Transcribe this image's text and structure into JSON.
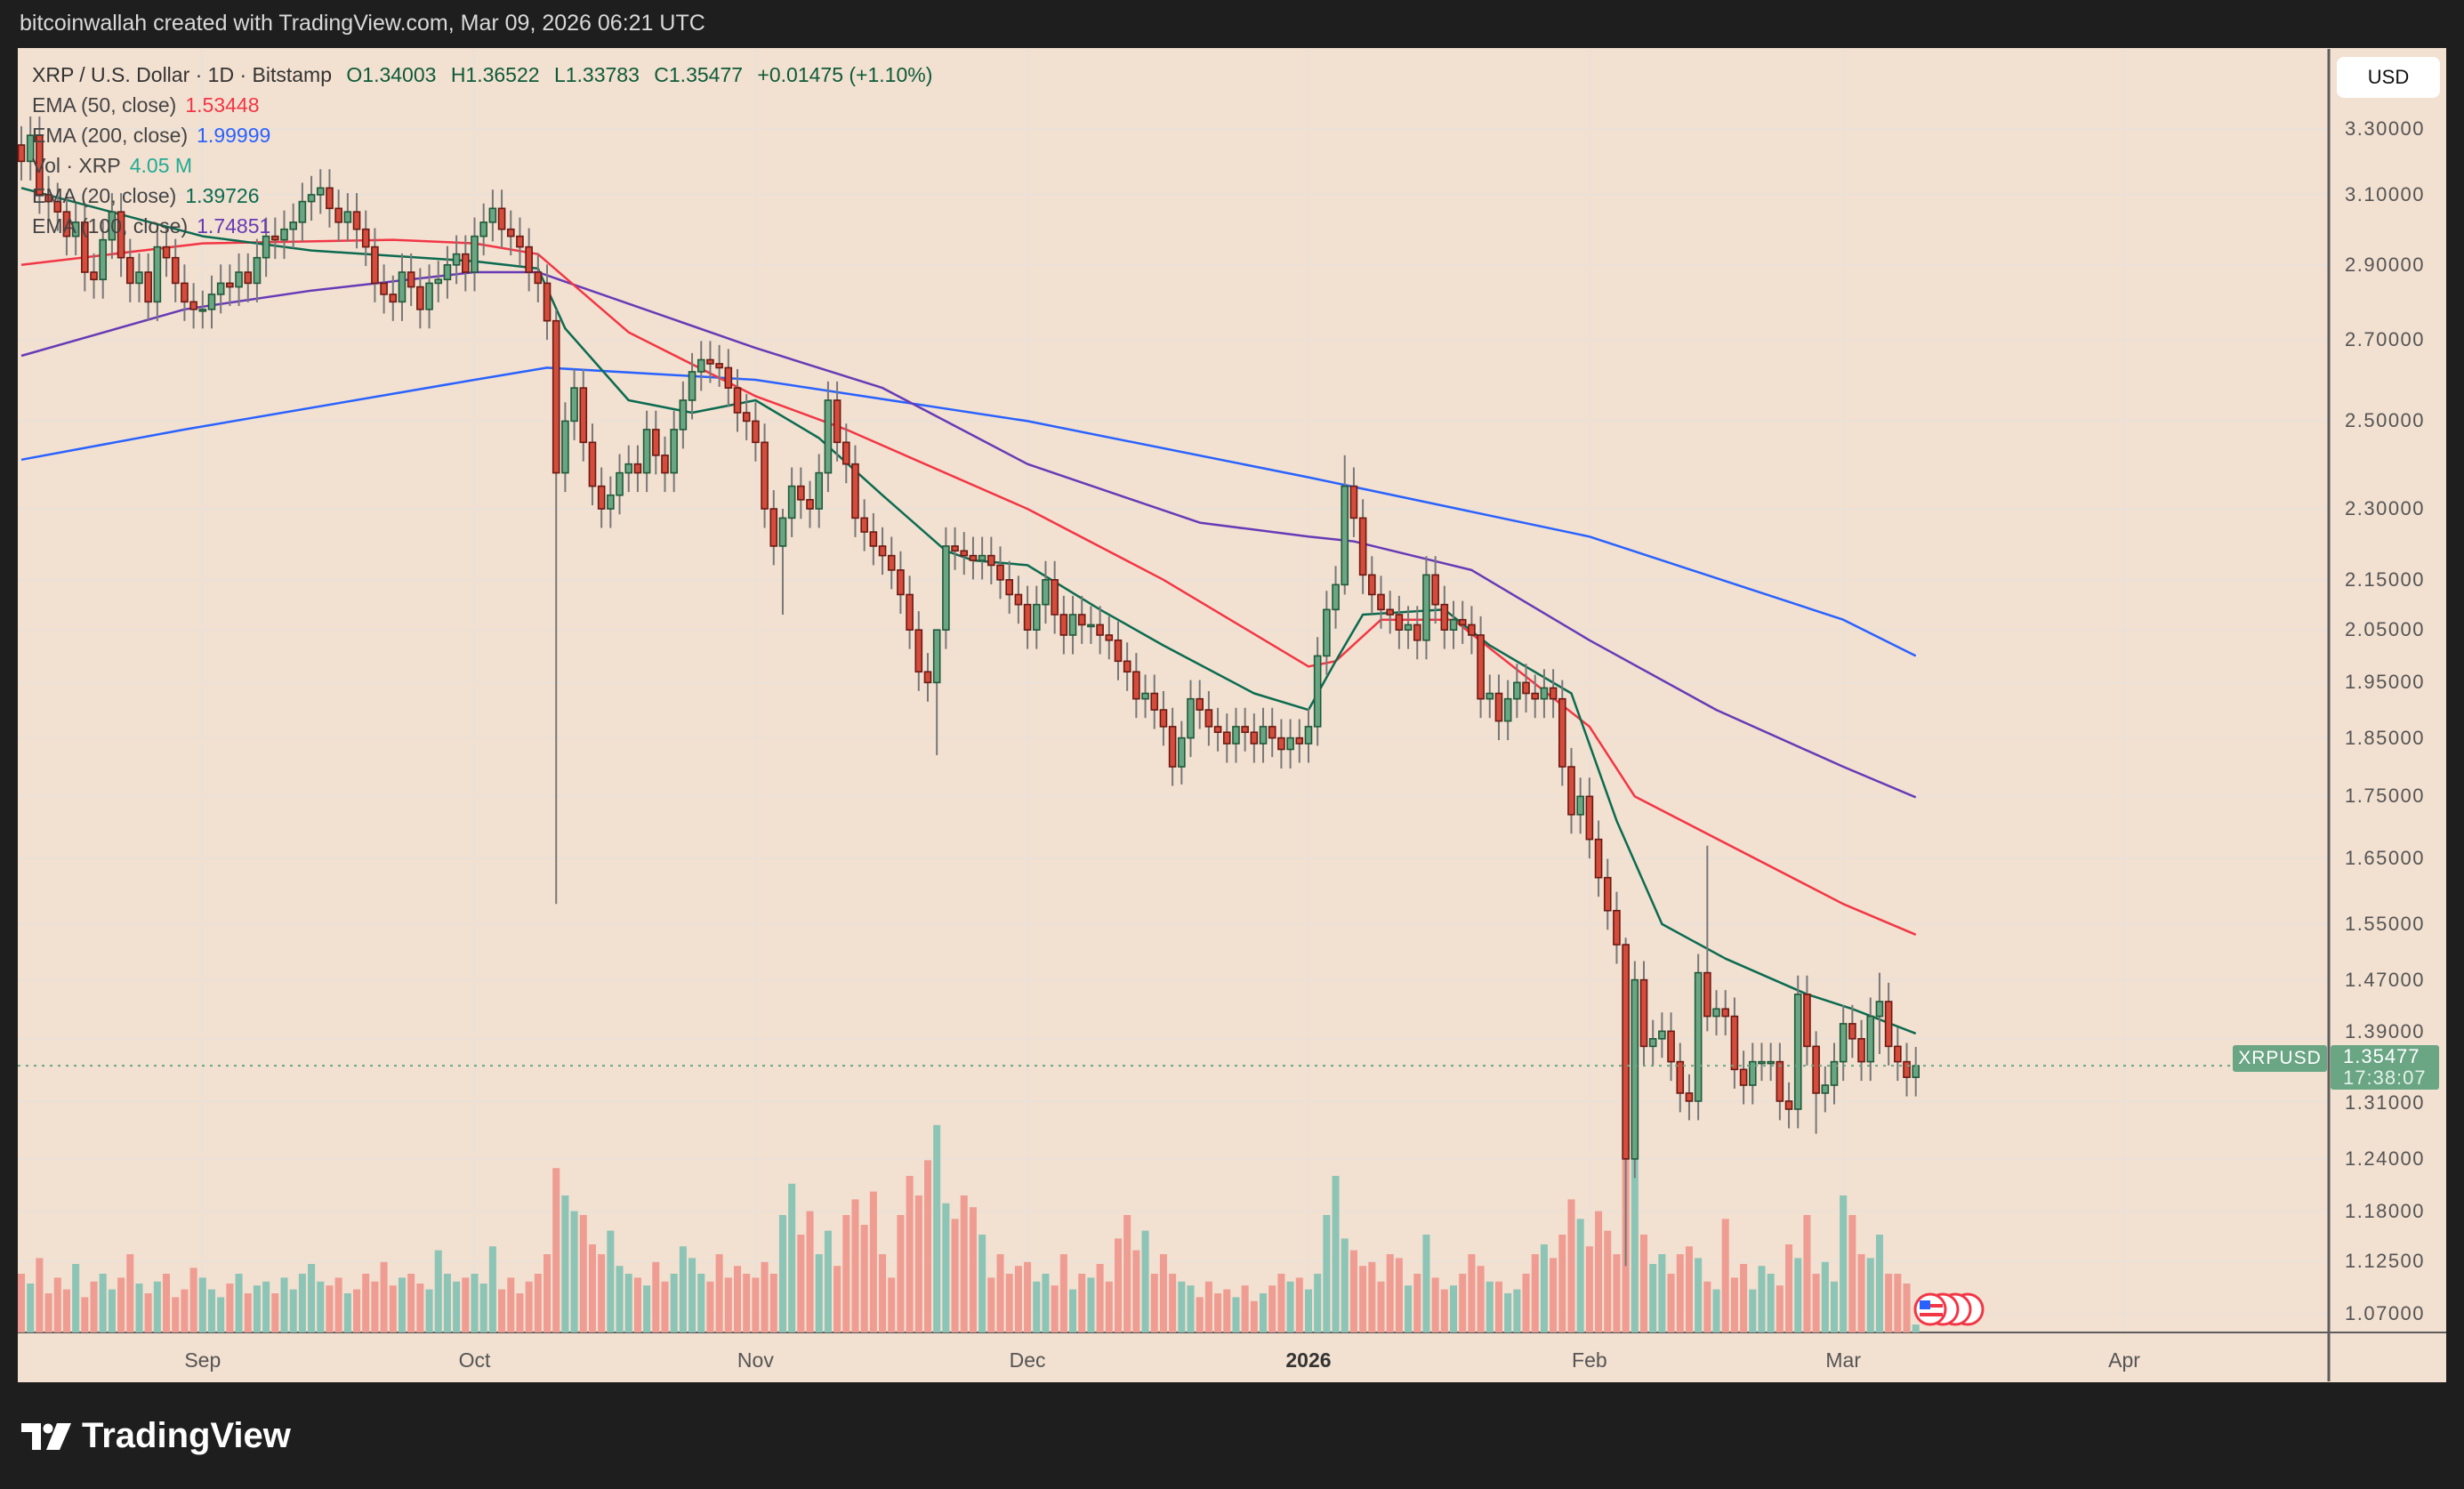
{
  "header": {
    "attribution": "bitcoinwallah created with TradingView.com, Mar 09, 2026 06:21 UTC"
  },
  "legend": {
    "symbol": "XRP / U.S. Dollar · 1D · Bitstamp",
    "open": "O1.34003",
    "high": "H1.36522",
    "low": "L1.33783",
    "close": "C1.35477",
    "change": "+0.01475 (+1.10%)",
    "ema50_label": "EMA (50, close)",
    "ema50_value": "1.53448",
    "ema200_label": "EMA (200, close)",
    "ema200_value": "1.99999",
    "vol_label": "Vol · XRP",
    "vol_value": "4.05 M",
    "ema20_label": "EMA (20, close)",
    "ema20_value": "1.39726",
    "ema100_label": "EMA (100, close)",
    "ema100_value": "1.74851"
  },
  "currency_button": "USD",
  "last_price": {
    "symbol": "XRPUSD",
    "price": "1.35477",
    "countdown": "17:38:07"
  },
  "branding": {
    "logo_text": "TradingView"
  },
  "colors": {
    "up": "#6aa584",
    "down": "#d44c3c",
    "ema50": "#f23645",
    "ema200": "#2962ff",
    "ema20": "#0b6b50",
    "ema100": "#673ab7",
    "vol_up": "#8cc4b6",
    "vol_down": "#ef9c92",
    "background": "#f2e0d0"
  },
  "chart_data": {
    "type": "candlestick",
    "title": "XRP / U.S. Dollar · 1D · Bitstamp",
    "y_scale": "log",
    "ylim": [
      1.05,
      3.35
    ],
    "y_ticks": [
      {
        "value": 3.3,
        "label": "3.30000"
      },
      {
        "value": 3.1,
        "label": "3.10000"
      },
      {
        "value": 2.9,
        "label": "2.90000"
      },
      {
        "value": 2.7,
        "label": "2.70000"
      },
      {
        "value": 2.5,
        "label": "2.50000"
      },
      {
        "value": 2.3,
        "label": "2.30000"
      },
      {
        "value": 2.15,
        "label": "2.15000"
      },
      {
        "value": 2.05,
        "label": "2.05000"
      },
      {
        "value": 1.95,
        "label": "1.95000"
      },
      {
        "value": 1.85,
        "label": "1.85000"
      },
      {
        "value": 1.75,
        "label": "1.75000"
      },
      {
        "value": 1.65,
        "label": "1.65000"
      },
      {
        "value": 1.55,
        "label": "1.55000"
      },
      {
        "value": 1.47,
        "label": "1.47000"
      },
      {
        "value": 1.39,
        "label": "1.39000"
      },
      {
        "value": 1.31,
        "label": "1.31000"
      },
      {
        "value": 1.24,
        "label": "1.24000"
      },
      {
        "value": 1.18,
        "label": "1.18000"
      },
      {
        "value": 1.125,
        "label": "1.12500"
      },
      {
        "value": 1.07,
        "label": "1.07000"
      }
    ],
    "x_ticks": [
      {
        "day": 20,
        "label": "Sep"
      },
      {
        "day": 50,
        "label": "Oct"
      },
      {
        "day": 81,
        "label": "Nov"
      },
      {
        "day": 111,
        "label": "Dec"
      },
      {
        "day": 142,
        "label": "2026",
        "bold": true
      },
      {
        "day": 173,
        "label": "Feb"
      },
      {
        "day": 201,
        "label": "Mar"
      },
      {
        "day": 232,
        "label": "Apr"
      }
    ],
    "first_open": 3.25,
    "closes": [
      3.2,
      3.28,
      3.1,
      3.08,
      3.05,
      2.98,
      3.02,
      2.88,
      2.86,
      2.97,
      3.05,
      2.92,
      2.85,
      2.88,
      2.8,
      2.95,
      2.92,
      2.85,
      2.8,
      2.78,
      2.78,
      2.82,
      2.85,
      2.84,
      2.88,
      2.85,
      2.92,
      2.98,
      2.97,
      3.0,
      3.02,
      3.08,
      3.1,
      3.12,
      3.06,
      3.02,
      3.05,
      3.0,
      2.95,
      2.85,
      2.82,
      2.8,
      2.88,
      2.84,
      2.78,
      2.85,
      2.86,
      2.9,
      2.93,
      2.88,
      2.98,
      3.02,
      3.06,
      3.0,
      2.98,
      2.95,
      2.88,
      2.85,
      2.75,
      2.38,
      2.5,
      2.58,
      2.45,
      2.35,
      2.3,
      2.33,
      2.38,
      2.4,
      2.38,
      2.48,
      2.42,
      2.38,
      2.48,
      2.55,
      2.62,
      2.65,
      2.64,
      2.63,
      2.58,
      2.52,
      2.5,
      2.45,
      2.3,
      2.22,
      2.28,
      2.35,
      2.32,
      2.3,
      2.38,
      2.55,
      2.45,
      2.4,
      2.28,
      2.25,
      2.22,
      2.2,
      2.17,
      2.12,
      2.05,
      1.97,
      1.95,
      2.05,
      2.22,
      2.21,
      2.2,
      2.19,
      2.2,
      2.18,
      2.15,
      2.12,
      2.1,
      2.05,
      2.1,
      2.15,
      2.08,
      2.04,
      2.08,
      2.06,
      2.06,
      2.04,
      2.03,
      1.99,
      1.97,
      1.92,
      1.93,
      1.9,
      1.87,
      1.8,
      1.85,
      1.92,
      1.9,
      1.87,
      1.86,
      1.84,
      1.87,
      1.86,
      1.84,
      1.87,
      1.85,
      1.83,
      1.85,
      1.84,
      1.87,
      2.0,
      2.09,
      2.14,
      2.35,
      2.28,
      2.16,
      2.12,
      2.09,
      2.08,
      2.05,
      2.06,
      2.03,
      2.16,
      2.1,
      2.05,
      2.07,
      2.06,
      2.04,
      1.92,
      1.93,
      1.88,
      1.92,
      1.95,
      1.93,
      1.92,
      1.94,
      1.92,
      1.8,
      1.72,
      1.75,
      1.68,
      1.62,
      1.57,
      1.52,
      1.24,
      1.47,
      1.38,
      1.39,
      1.4,
      1.36,
      1.32,
      1.31,
      1.48,
      1.42,
      1.43,
      1.42,
      1.35,
      1.33,
      1.36,
      1.36,
      1.36,
      1.31,
      1.3,
      1.45,
      1.38,
      1.32,
      1.33,
      1.36,
      1.41,
      1.39,
      1.36,
      1.42,
      1.44,
      1.38,
      1.36,
      1.34,
      1.35477
    ],
    "wick_extremes": [
      {
        "day": 59,
        "high": 2.78,
        "low": 1.58
      },
      {
        "day": 177,
        "high": 1.53,
        "low": 1.12
      },
      {
        "day": 146,
        "high": 2.42,
        "low": 2.12
      },
      {
        "day": 186,
        "high": 1.67,
        "low": 1.4
      },
      {
        "day": 101,
        "high": 2.0,
        "low": 1.82
      },
      {
        "day": 128,
        "high": 1.88,
        "low": 1.77
      },
      {
        "day": 84,
        "high": 2.3,
        "low": 2.08
      },
      {
        "day": 198,
        "high": 1.4,
        "low": 1.27
      },
      {
        "day": 205,
        "high": 1.48,
        "low": 1.37
      }
    ],
    "volume_unit": "M",
    "volumes": [
      30,
      25,
      38,
      20,
      28,
      22,
      35,
      18,
      26,
      30,
      22,
      28,
      40,
      25,
      20,
      26,
      30,
      18,
      22,
      33,
      28,
      22,
      18,
      25,
      30,
      20,
      24,
      26,
      20,
      28,
      22,
      30,
      35,
      26,
      24,
      28,
      20,
      22,
      30,
      26,
      36,
      24,
      28,
      30,
      25,
      22,
      42,
      30,
      26,
      28,
      30,
      25,
      44,
      22,
      28,
      20,
      26,
      30,
      40,
      84,
      70,
      62,
      60,
      45,
      40,
      52,
      34,
      30,
      28,
      24,
      36,
      26,
      30,
      44,
      38,
      30,
      26,
      40,
      28,
      34,
      30,
      28,
      36,
      30,
      60,
      76,
      50,
      62,
      40,
      52,
      34,
      60,
      68,
      55,
      72,
      40,
      28,
      60,
      80,
      70,
      88,
      106,
      66,
      58,
      70,
      64,
      50,
      28,
      40,
      30,
      34,
      36,
      26,
      30,
      24,
      40,
      22,
      30,
      28,
      35,
      26,
      48,
      60,
      42,
      52,
      30,
      40,
      30,
      26,
      24,
      18,
      26,
      20,
      22,
      18,
      24,
      16,
      20,
      24,
      30,
      26,
      28,
      22,
      30,
      60,
      80,
      48,
      42,
      34,
      36,
      26,
      40,
      38,
      24,
      30,
      50,
      28,
      22,
      24,
      30,
      40,
      34,
      26,
      26,
      20,
      22,
      30,
      40,
      45,
      38,
      50,
      68,
      58,
      44,
      62,
      52,
      40,
      98,
      100,
      50,
      35,
      40,
      30,
      40,
      44,
      38,
      26,
      22,
      58,
      28,
      35,
      22,
      34,
      30,
      24,
      45,
      38,
      60,
      30,
      36,
      26,
      70,
      60,
      40,
      38,
      50,
      30,
      30,
      25,
      4.05
    ],
    "series": [
      {
        "name": "EMA (200, close)",
        "color_key": "ema200",
        "points": [
          [
            0,
            2.41
          ],
          [
            18,
            2.48
          ],
          [
            50,
            2.6
          ],
          [
            58,
            2.63
          ],
          [
            81,
            2.6
          ],
          [
            111,
            2.5
          ],
          [
            142,
            2.37
          ],
          [
            173,
            2.24
          ],
          [
            201,
            2.07
          ],
          [
            209,
            2.0
          ]
        ]
      },
      {
        "name": "EMA (100, close)",
        "color_key": "ema100",
        "points": [
          [
            0,
            2.66
          ],
          [
            18,
            2.78
          ],
          [
            32,
            2.83
          ],
          [
            50,
            2.88
          ],
          [
            57,
            2.88
          ],
          [
            81,
            2.68
          ],
          [
            95,
            2.58
          ],
          [
            111,
            2.4
          ],
          [
            130,
            2.27
          ],
          [
            142,
            2.24
          ],
          [
            147,
            2.23
          ],
          [
            160,
            2.17
          ],
          [
            173,
            2.03
          ],
          [
            187,
            1.9
          ],
          [
            201,
            1.8
          ],
          [
            209,
            1.7485
          ]
        ]
      },
      {
        "name": "EMA (50, close)",
        "color_key": "ema50",
        "points": [
          [
            0,
            2.9
          ],
          [
            20,
            2.96
          ],
          [
            41,
            2.97
          ],
          [
            50,
            2.96
          ],
          [
            57,
            2.93
          ],
          [
            67,
            2.72
          ],
          [
            81,
            2.56
          ],
          [
            91,
            2.48
          ],
          [
            111,
            2.3
          ],
          [
            126,
            2.15
          ],
          [
            142,
            1.98
          ],
          [
            145,
            1.99
          ],
          [
            150,
            2.07
          ],
          [
            158,
            2.07
          ],
          [
            173,
            1.87
          ],
          [
            178,
            1.75
          ],
          [
            201,
            1.58
          ],
          [
            209,
            1.5345
          ]
        ]
      },
      {
        "name": "EMA (20, close)",
        "color_key": "ema20",
        "points": [
          [
            0,
            3.12
          ],
          [
            20,
            2.98
          ],
          [
            32,
            2.94
          ],
          [
            50,
            2.91
          ],
          [
            57,
            2.89
          ],
          [
            60,
            2.73
          ],
          [
            67,
            2.55
          ],
          [
            74,
            2.52
          ],
          [
            81,
            2.55
          ],
          [
            88,
            2.46
          ],
          [
            95,
            2.33
          ],
          [
            102,
            2.21
          ],
          [
            105,
            2.19
          ],
          [
            111,
            2.18
          ],
          [
            119,
            2.09
          ],
          [
            126,
            2.02
          ],
          [
            136,
            1.93
          ],
          [
            142,
            1.9
          ],
          [
            145,
            1.99
          ],
          [
            148,
            2.08
          ],
          [
            157,
            2.09
          ],
          [
            162,
            2.02
          ],
          [
            171,
            1.93
          ],
          [
            176,
            1.71
          ],
          [
            181,
            1.55
          ],
          [
            188,
            1.5
          ],
          [
            197,
            1.45
          ],
          [
            202,
            1.43
          ],
          [
            209,
            1.397
          ]
        ]
      }
    ]
  }
}
